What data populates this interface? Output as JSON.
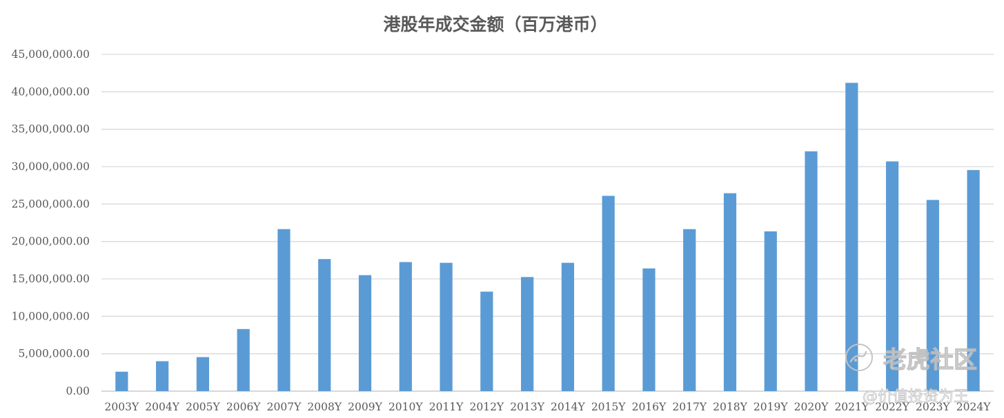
{
  "chart_data": {
    "type": "bar",
    "title": "港股年成交金额（百万港币）",
    "xlabel": "",
    "ylabel": "",
    "ylim": [
      0,
      45000000
    ],
    "ytick_step": 5000000,
    "yticks": [
      "0.00",
      "5,000,000.00",
      "10,000,000.00",
      "15,000,000.00",
      "20,000,000.00",
      "25,000,000.00",
      "30,000,000.00",
      "35,000,000.00",
      "40,000,000.00",
      "45,000,000.00"
    ],
    "grid": true,
    "legend": "none",
    "bar_color": "#5b9bd5",
    "categories": [
      "2003Y",
      "2004Y",
      "2005Y",
      "2006Y",
      "2007Y",
      "2008Y",
      "2009Y",
      "2010Y",
      "2011Y",
      "2012Y",
      "2013Y",
      "2014Y",
      "2015Y",
      "2016Y",
      "2017Y",
      "2018Y",
      "2019Y",
      "2020Y",
      "2021Y",
      "2022Y",
      "2023Y",
      "2024Y"
    ],
    "values": [
      2600000,
      4000000,
      4550000,
      8300000,
      21650000,
      17650000,
      15500000,
      17250000,
      17150000,
      13300000,
      15250000,
      17150000,
      26100000,
      16400000,
      21650000,
      26450000,
      21350000,
      32050000,
      41200000,
      30700000,
      25550000,
      29550000
    ]
  },
  "watermark": {
    "brand": "老虎社区",
    "author": "@价值投资为王",
    "icon": "tiger-logo-icon"
  }
}
